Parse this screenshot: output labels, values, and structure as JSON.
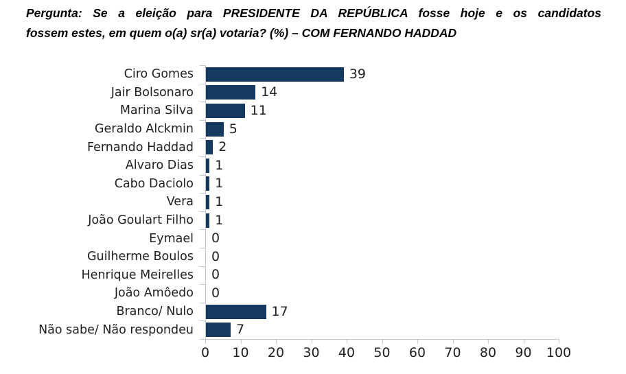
{
  "title": {
    "line1": "Pergunta: Se a eleição para PRESIDENTE DA REPÚBLICA fosse hoje e os candidatos",
    "line2": "fossem estes, em quem o(a) sr(a) votaria? (%) – COM FERNANDO HADDAD"
  },
  "chart_data": {
    "type": "bar",
    "orientation": "horizontal",
    "title": "Pergunta: Se a eleição para PRESIDENTE DA REPÚBLICA fosse hoje e os candidatos fossem estes, em quem o(a) sr(a) votaria? (%) – COM FERNANDO HADDAD",
    "categories": [
      "Ciro Gomes",
      "Jair Bolsonaro",
      "Marina Silva",
      "Geraldo Alckmin",
      "Fernando Haddad",
      "Alvaro Dias",
      "Cabo Daciolo",
      "Vera",
      "João Goulart Filho",
      "Eymael",
      "Guilherme Boulos",
      "Henrique Meirelles",
      "João Amôedo",
      "Branco/ Nulo",
      "Não sabe/ Não respondeu"
    ],
    "values": [
      39,
      14,
      11,
      5,
      2,
      1,
      1,
      1,
      1,
      0,
      0,
      0,
      0,
      17,
      7
    ],
    "xlabel": "",
    "ylabel": "",
    "xlim": [
      0,
      100
    ],
    "x_ticks": [
      0,
      10,
      20,
      30,
      40,
      50,
      60,
      70,
      80,
      90,
      100
    ],
    "grid": false,
    "legend": "none",
    "value_labels_shown": true,
    "colors": {
      "bar": "#15395F",
      "axis": "#C3C7CC",
      "text": "#1F1F1F",
      "title_text": "#000000",
      "background": "#FFFFFF"
    }
  }
}
